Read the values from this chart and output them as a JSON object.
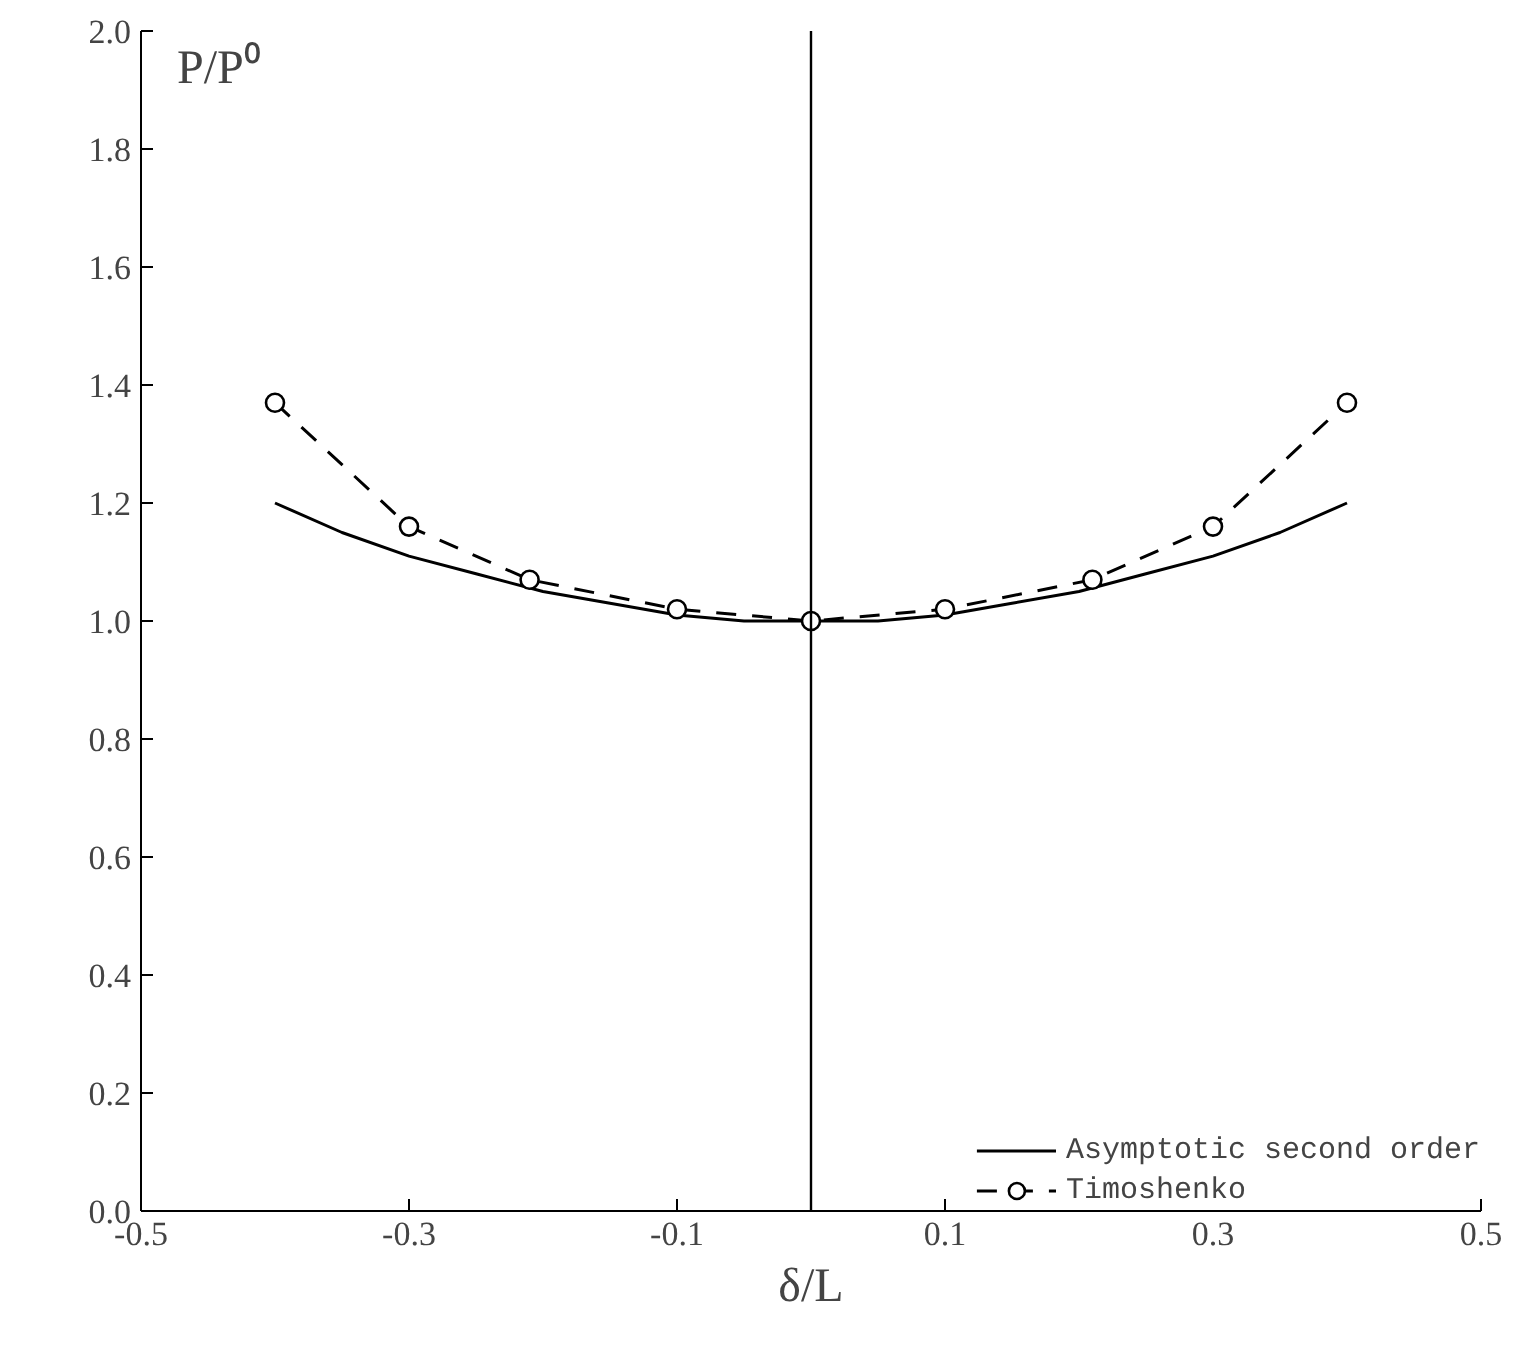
{
  "chart_data": {
    "type": "line",
    "xlabel": "δ/L",
    "ylabel": "P/P⁰",
    "xlim": [
      -0.5,
      0.5
    ],
    "xticks": [
      -0.5,
      -0.3,
      -0.1,
      0.1,
      0.3,
      0.5
    ],
    "ylim": [
      0,
      2.0
    ],
    "yticks": [
      {
        "value": 0,
        "label": "0.0"
      },
      {
        "value": 0.2,
        "label": "0.2"
      },
      {
        "value": 0.4,
        "label": "0.4"
      },
      {
        "value": 0.6,
        "label": "0.6"
      },
      {
        "value": 0.8,
        "label": "0.8"
      },
      {
        "value": 1.0,
        "label": "1.0"
      },
      {
        "value": 1.2,
        "label": "1.2"
      },
      {
        "value": 1.4,
        "label": "1.4"
      },
      {
        "value": 1.6,
        "label": "1.6"
      },
      {
        "value": 1.8,
        "label": "1.8"
      },
      {
        "value": 2.0,
        "label": "2.0"
      }
    ],
    "series": [
      {
        "name": "Asymptotic second order",
        "color": "#000000",
        "marker": "none",
        "line_style": "solid",
        "x": [
          -0.4,
          -0.35,
          -0.3,
          -0.25,
          -0.2,
          -0.15,
          -0.1,
          -0.05,
          0,
          0.05,
          0.1,
          0.15,
          0.2,
          0.25,
          0.3,
          0.35,
          0.4
        ],
        "values": [
          1.2,
          1.15,
          1.11,
          1.08,
          1.05,
          1.03,
          1.01,
          1.0,
          1.0,
          1.0,
          1.01,
          1.03,
          1.05,
          1.08,
          1.11,
          1.15,
          1.2
        ]
      },
      {
        "name": "Timoshenko",
        "color": "#000000",
        "marker": "circle",
        "line_style": "dashed",
        "x": [
          -0.4,
          -0.3,
          -0.21,
          -0.1,
          0,
          0.1,
          0.21,
          0.3,
          0.4
        ],
        "values": [
          1.37,
          1.16,
          1.07,
          1.02,
          1.0,
          1.02,
          1.07,
          1.16,
          1.37
        ]
      }
    ],
    "ref_lines": [
      {
        "axis": "x",
        "value": 0,
        "label": null
      }
    ],
    "grid": false,
    "legend": "bottom right"
  }
}
